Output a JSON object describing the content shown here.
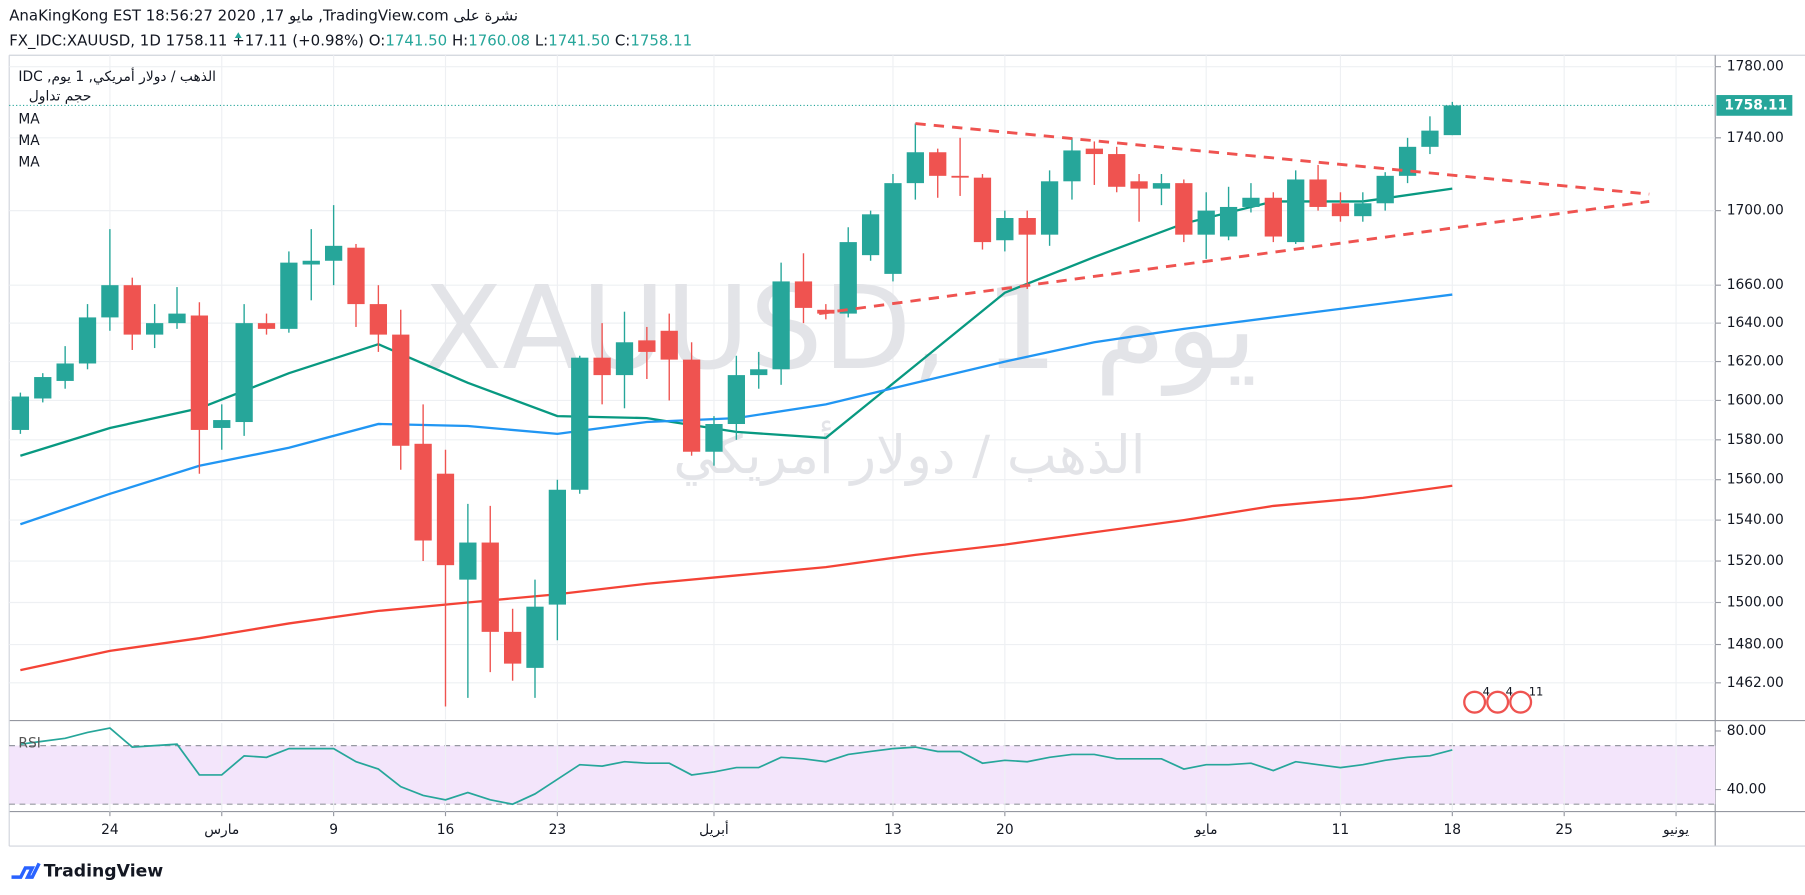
{
  "header": {
    "line1": "AnaKingKong EST 18:56:27 2020 ,17 مايو ,TradingView.com نشرة على",
    "symbol": "FX_IDC:XAUUSD, 1D",
    "price": "1758.11",
    "change": "+17.11 (+0.98%)",
    "ohlc": [
      [
        "O:",
        "1741.50"
      ],
      [
        "H:",
        "1760.08"
      ],
      [
        "L:",
        "1741.50"
      ],
      [
        "C:",
        "1758.11"
      ]
    ]
  },
  "footer": {
    "logo": "TradingView"
  },
  "chart_data": [
    {
      "type": "candlestick",
      "legend_title": "IDC ,الذهب / دولار أمريكي, 1 يوم",
      "volume_label": "حجم تداول",
      "watermark": "XAUUSD, 1 يوم",
      "watermark_sub": "الذهب / دولار أمريكي",
      "log_scale": true,
      "grid": true,
      "up_color": "#26a69a",
      "down_color": "#ef5350",
      "xlim": [
        -0.5,
        75.75
      ],
      "xticks": [
        {
          "value": 4,
          "label": "24"
        },
        {
          "value": 9,
          "label": "مارس"
        },
        {
          "value": 14,
          "label": "9"
        },
        {
          "value": 19,
          "label": "16"
        },
        {
          "value": 24,
          "label": "23"
        },
        {
          "value": 31,
          "label": "أبريل"
        },
        {
          "value": 39,
          "label": "13"
        },
        {
          "value": 44,
          "label": "20"
        },
        {
          "value": 53,
          "label": "مايو"
        },
        {
          "value": 59,
          "label": "11"
        },
        {
          "value": 64,
          "label": "18"
        },
        {
          "value": 69,
          "label": "25"
        },
        {
          "value": 74,
          "label": "يونيو"
        }
      ],
      "ylim": [
        1445,
        1786.5
      ],
      "yticks": [
        {
          "value": 1780,
          "label": "1780.00"
        },
        {
          "value": 1740,
          "label": "1740.00"
        },
        {
          "value": 1700,
          "label": "1700.00"
        },
        {
          "value": 1660,
          "label": "1660.00"
        },
        {
          "value": 1640,
          "label": "1640.00"
        },
        {
          "value": 1620,
          "label": "1620.00"
        },
        {
          "value": 1600,
          "label": "1600.00"
        },
        {
          "value": 1580,
          "label": "1580.00"
        },
        {
          "value": 1560,
          "label": "1560.00"
        },
        {
          "value": 1540,
          "label": "1540.00"
        },
        {
          "value": 1520,
          "label": "1520.00"
        },
        {
          "value": 1500,
          "label": "1500.00"
        },
        {
          "value": 1480,
          "label": "1480.00"
        },
        {
          "value": 1462,
          "label": "1462.00"
        }
      ],
      "last_price": 1758.11,
      "open": [
        1585,
        1601,
        1610,
        1619,
        1643,
        1660,
        1634,
        1640,
        1644,
        1586,
        1589,
        1640,
        1637,
        1671,
        1673,
        1680,
        1650,
        1634,
        1578,
        1563,
        1511,
        1529,
        1486,
        1469,
        1499,
        1555,
        1622,
        1613,
        1631,
        1636,
        1621,
        1574,
        1588,
        1613,
        1616,
        1662,
        1647,
        1645,
        1676,
        1666,
        1715,
        1732,
        1719,
        1718,
        1684,
        1696,
        1687,
        1716,
        1734,
        1731,
        1716,
        1712,
        1715,
        1687,
        1686,
        1702,
        1707,
        1683,
        1717,
        1704,
        1697,
        1704,
        1719,
        1735,
        1741.5
      ],
      "high": [
        1604,
        1614,
        1628,
        1650,
        1690,
        1664,
        1650,
        1659,
        1651,
        1598,
        1650,
        1645,
        1678,
        1690,
        1703,
        1682,
        1660,
        1647,
        1598,
        1575,
        1548,
        1547,
        1497,
        1511,
        1560,
        1623,
        1640,
        1646,
        1638,
        1645,
        1630,
        1592,
        1623,
        1625,
        1672,
        1677,
        1650,
        1691,
        1700,
        1720,
        1748,
        1734,
        1740,
        1720,
        1700,
        1700,
        1722,
        1740,
        1738,
        1735,
        1720,
        1720,
        1717,
        1710,
        1713,
        1715,
        1710,
        1722,
        1725,
        1710,
        1710,
        1721,
        1740,
        1752,
        1760.08
      ],
      "low": [
        1583,
        1599,
        1606,
        1616,
        1636,
        1626,
        1627,
        1637,
        1563,
        1575,
        1582,
        1634,
        1635,
        1652,
        1660,
        1638,
        1625,
        1565,
        1520,
        1451,
        1455,
        1467,
        1463,
        1455,
        1482,
        1553,
        1598,
        1596,
        1611,
        1600,
        1572,
        1567,
        1580,
        1606,
        1608,
        1640,
        1642,
        1643,
        1673,
        1662,
        1706,
        1707,
        1708,
        1679,
        1678,
        1658,
        1681,
        1706,
        1714,
        1710,
        1694,
        1703,
        1683,
        1674,
        1684,
        1699,
        1683,
        1682,
        1700,
        1694,
        1694,
        1700,
        1715,
        1731,
        1741.5
      ],
      "close": [
        1602,
        1612,
        1619,
        1643,
        1660,
        1634,
        1640,
        1645,
        1585,
        1590,
        1640,
        1637,
        1672,
        1673,
        1681,
        1650,
        1634,
        1577,
        1530,
        1518,
        1529,
        1486,
        1471,
        1498,
        1555,
        1622,
        1613,
        1630,
        1625,
        1621,
        1574,
        1588,
        1613,
        1616,
        1662,
        1648,
        1645,
        1683,
        1698,
        1715,
        1732,
        1719,
        1718,
        1683,
        1696,
        1687,
        1716,
        1733,
        1731,
        1713,
        1712,
        1715,
        1687,
        1700,
        1702,
        1707,
        1686,
        1717,
        1702,
        1697,
        1704,
        1719,
        1735,
        1744,
        1758.11
      ],
      "series": [
        {
          "name": "MA",
          "color": "#089981",
          "x": [
            0,
            4,
            8,
            12,
            16,
            20,
            24,
            28,
            32,
            36,
            40,
            44,
            48,
            52,
            56,
            60,
            64
          ],
          "values": [
            1572,
            1586,
            1596,
            1614,
            1629,
            1609,
            1592,
            1591,
            1584,
            1581,
            1618,
            1656,
            1675,
            1693,
            1705,
            1705,
            1712
          ]
        },
        {
          "name": "MA",
          "color": "#2196f3",
          "x": [
            0,
            4,
            8,
            12,
            16,
            20,
            24,
            28,
            32,
            36,
            40,
            44,
            48,
            52,
            56,
            60,
            64
          ],
          "values": [
            1538,
            1553,
            1567,
            1576,
            1588,
            1587,
            1583,
            1589,
            1591,
            1598,
            1609,
            1620,
            1630,
            1637,
            1643,
            1649,
            1655
          ]
        },
        {
          "name": "MA",
          "color": "#f44336",
          "x": [
            0,
            4,
            8,
            12,
            16,
            20,
            24,
            28,
            32,
            36,
            40,
            44,
            48,
            52,
            56,
            60,
            64
          ],
          "values": [
            1468,
            1477,
            1483,
            1490,
            1496,
            1500,
            1504,
            1509,
            1513,
            1517,
            1523,
            1528,
            1534,
            1540,
            1547,
            1551,
            1557
          ]
        }
      ],
      "trendlines": [
        {
          "color": "#ef5350",
          "x": [
            40,
            72.8
          ],
          "values": [
            1748,
            1709
          ]
        },
        {
          "color": "#ef5350",
          "x": [
            35.7,
            72.8
          ],
          "values": [
            1645,
            1705
          ]
        }
      ],
      "event_labels": [
        "4",
        "4",
        "11"
      ]
    },
    {
      "type": "line",
      "title": "RSI",
      "ylim": [
        25,
        85.5
      ],
      "yticks": [
        {
          "value": 80,
          "label": "80.00"
        },
        {
          "value": 40,
          "label": "40.00"
        }
      ],
      "band": [
        30,
        70
      ],
      "band_color": "#f3e5fb",
      "series": [
        {
          "color": "#26a69a",
          "values": [
            71,
            73,
            75,
            79,
            82,
            69,
            70,
            71,
            50,
            50,
            63,
            62,
            68,
            68,
            68,
            59,
            54,
            42,
            36,
            33,
            38,
            33,
            30,
            37,
            47,
            57,
            56,
            59,
            58,
            58,
            50,
            52,
            55,
            55,
            62,
            61,
            59,
            64,
            66,
            68,
            69,
            66,
            66,
            58,
            60,
            59,
            62,
            64,
            64,
            61,
            61,
            61,
            54,
            57,
            57,
            58,
            53,
            59,
            57,
            55,
            57,
            60,
            62,
            63,
            67
          ]
        }
      ]
    }
  ]
}
